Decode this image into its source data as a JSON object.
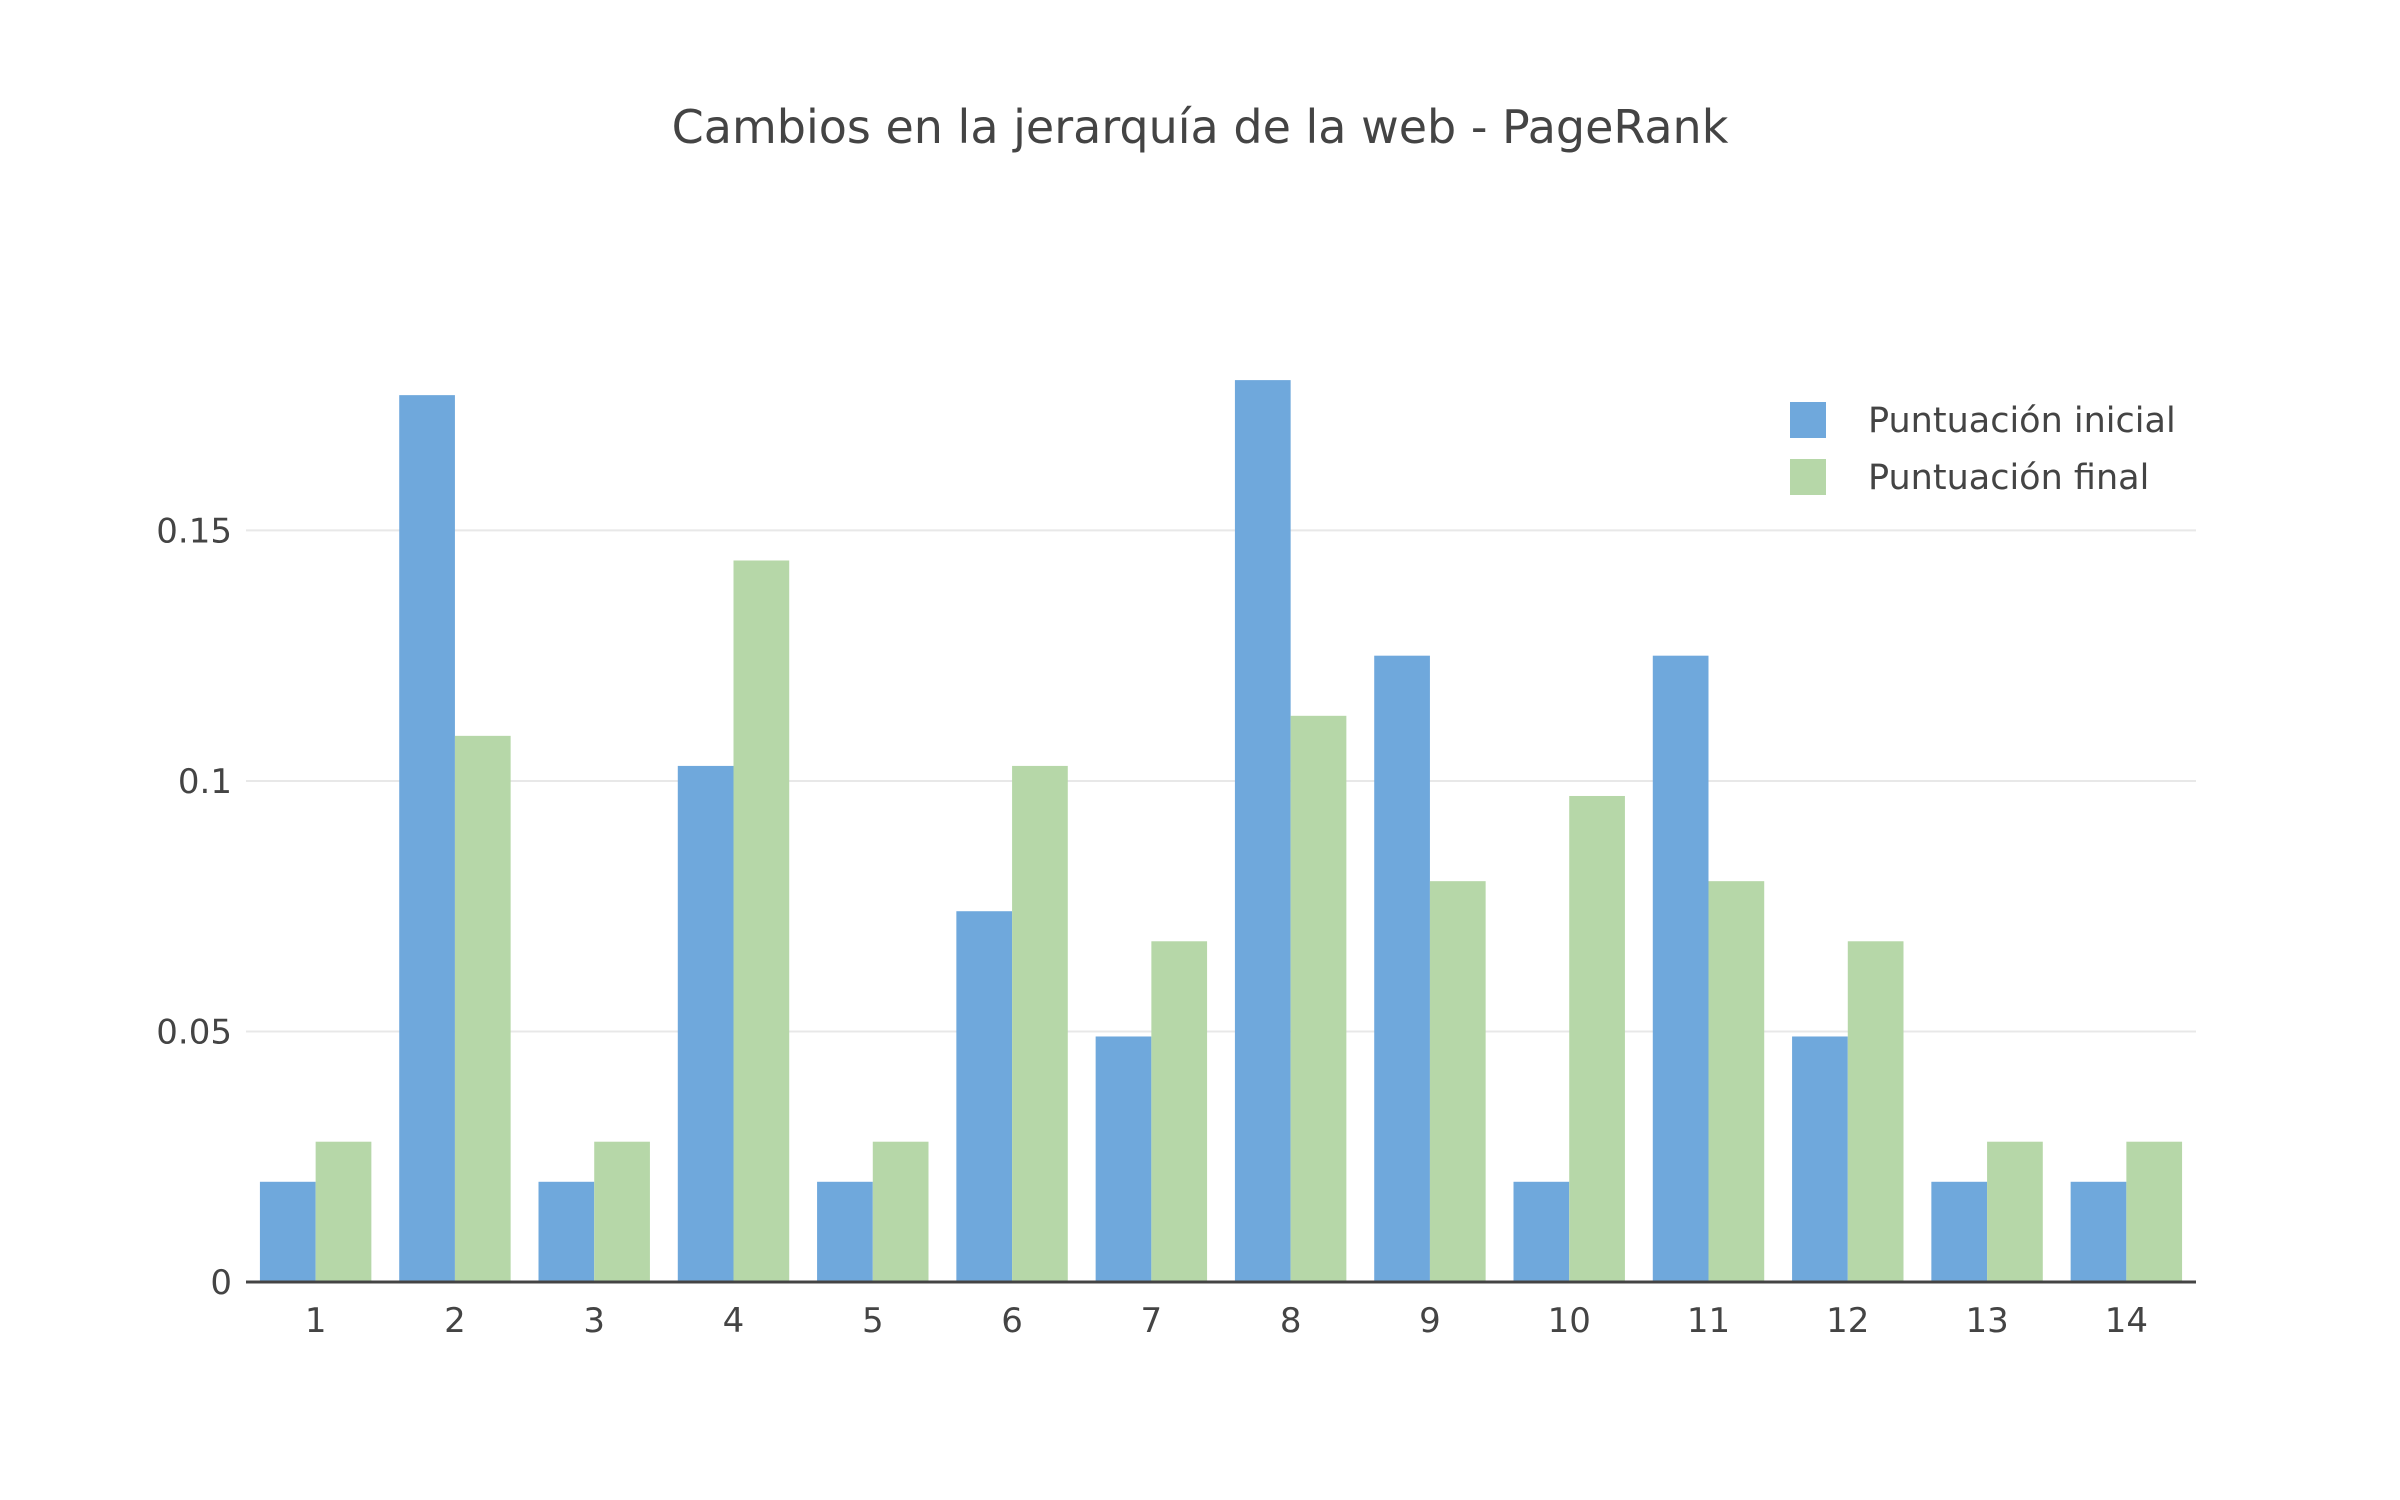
{
  "chart_data": {
    "type": "bar",
    "title": "Cambios en la jerarquía de la web - PageRank",
    "xlabel": "",
    "ylabel": "",
    "categories": [
      "1",
      "2",
      "3",
      "4",
      "5",
      "6",
      "7",
      "8",
      "9",
      "10",
      "11",
      "12",
      "13",
      "14"
    ],
    "series": [
      {
        "name": "Puntuación inicial",
        "color": "#6fa8dc",
        "values": [
          0.02,
          0.177,
          0.02,
          0.103,
          0.02,
          0.074,
          0.049,
          0.18,
          0.125,
          0.02,
          0.125,
          0.049,
          0.02,
          0.02
        ]
      },
      {
        "name": "Puntuación final",
        "color": "#b6d7a8",
        "values": [
          0.028,
          0.109,
          0.028,
          0.144,
          0.028,
          0.103,
          0.068,
          0.113,
          0.08,
          0.097,
          0.08,
          0.068,
          0.028,
          0.028
        ]
      }
    ],
    "ylim": [
      0,
      0.19
    ],
    "yticks": [
      0,
      0.05,
      0.1,
      0.15
    ],
    "ytick_labels": [
      "0",
      "0.05",
      "0.1",
      "0.15"
    ],
    "grid": true,
    "legend_position": "top-right"
  }
}
